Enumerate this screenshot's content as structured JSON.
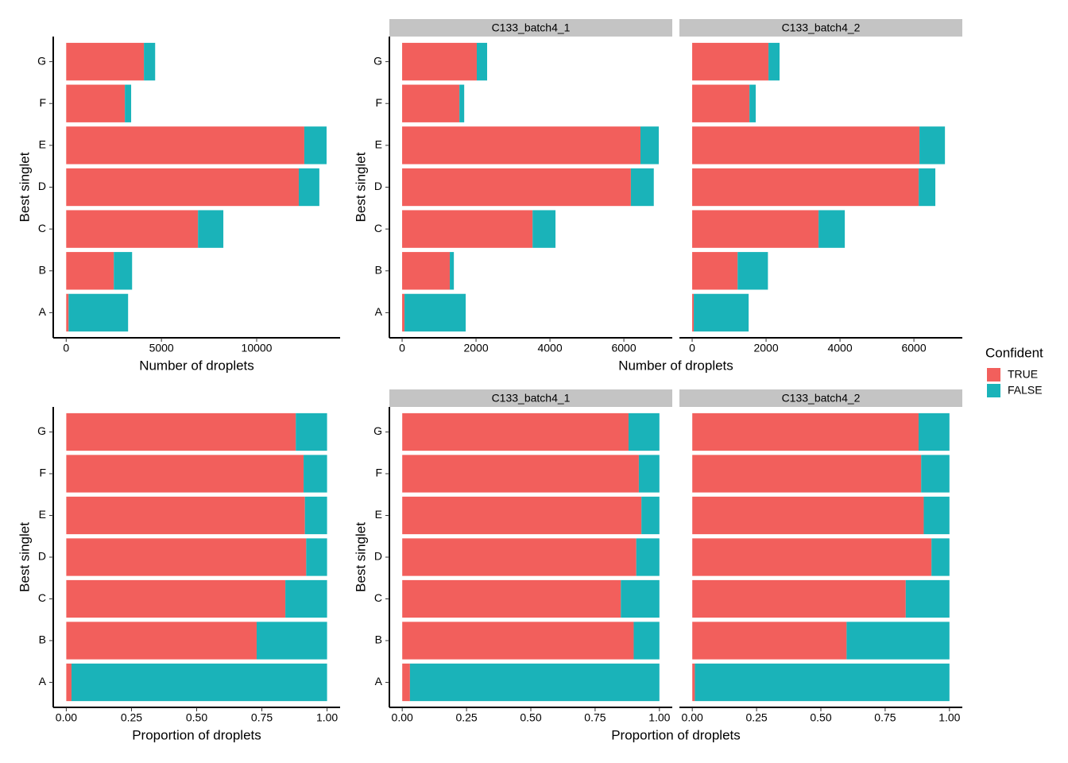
{
  "chart_data": [
    {
      "type": "bar",
      "orientation": "horizontal",
      "stacked": true,
      "xlabel": "Number of droplets",
      "ylabel": "Best singlet",
      "legend_title": "Confident",
      "legend_position": "right",
      "categories": [
        "A",
        "B",
        "C",
        "D",
        "E",
        "F",
        "G"
      ],
      "xlim": [
        -680,
        14380
      ],
      "xticks": [
        0,
        5000,
        10000
      ],
      "panels": [
        {
          "series": [
            {
              "name": "TRUE",
              "color": "#F25F5C",
              "values": [
                125,
                2500,
                6920,
                12210,
                12500,
                3080,
                4080
              ]
            },
            {
              "name": "FALSE",
              "color": "#1AB3B9",
              "values": [
                3125,
                960,
                1330,
                1080,
                1170,
                330,
                590
              ]
            }
          ]
        }
      ]
    },
    {
      "type": "bar",
      "orientation": "horizontal",
      "stacked": true,
      "xlabel": "Number of droplets",
      "ylabel": "Best singlet",
      "categories": [
        "A",
        "B",
        "C",
        "D",
        "E",
        "F",
        "G"
      ],
      "xlim": [
        -345,
        7310
      ],
      "xticks": [
        0,
        2000,
        4000,
        6000
      ],
      "panels": [
        {
          "title": "C133_batch4_1",
          "series": [
            {
              "name": "TRUE",
              "color": "#F25F5C",
              "values": [
                65,
                1290,
                3530,
                6190,
                6450,
                1550,
                2020
              ]
            },
            {
              "name": "FALSE",
              "color": "#1AB3B9",
              "values": [
                1655,
                110,
                620,
                620,
                495,
                130,
                280
              ]
            }
          ]
        },
        {
          "title": "C133_batch4_2",
          "series": [
            {
              "name": "TRUE",
              "color": "#F25F5C",
              "values": [
                43,
                1230,
                3420,
                6130,
                6150,
                1550,
                2065
              ]
            },
            {
              "name": "FALSE",
              "color": "#1AB3B9",
              "values": [
                1485,
                820,
                710,
                450,
                690,
                170,
                300
              ]
            }
          ]
        }
      ]
    },
    {
      "type": "bar",
      "orientation": "horizontal",
      "stacked": true,
      "xlabel": "Proportion of droplets",
      "ylabel": "Best singlet",
      "categories": [
        "A",
        "B",
        "C",
        "D",
        "E",
        "F",
        "G"
      ],
      "xlim": [
        -0.05,
        1.05
      ],
      "xticks": [
        {
          "value": 0,
          "label": "0.00"
        },
        {
          "value": 0.25,
          "label": "0.25"
        },
        {
          "value": 0.5,
          "label": "0.50"
        },
        {
          "value": 0.75,
          "label": "0.75"
        },
        {
          "value": 1,
          "label": "1.00"
        }
      ],
      "panels": [
        {
          "series": [
            {
              "name": "TRUE",
              "color": "#F25F5C",
              "values": [
                0.02,
                0.73,
                0.84,
                0.92,
                0.915,
                0.91,
                0.88
              ]
            },
            {
              "name": "FALSE",
              "color": "#1AB3B9",
              "values": [
                0.98,
                0.27,
                0.16,
                0.08,
                0.085,
                0.09,
                0.12
              ]
            }
          ]
        }
      ]
    },
    {
      "type": "bar",
      "orientation": "horizontal",
      "stacked": true,
      "xlabel": "Proportion of droplets",
      "ylabel": "Best singlet",
      "categories": [
        "A",
        "B",
        "C",
        "D",
        "E",
        "F",
        "G"
      ],
      "xlim": [
        -0.05,
        1.05
      ],
      "xticks": [
        {
          "value": 0,
          "label": "0.00"
        },
        {
          "value": 0.25,
          "label": "0.25"
        },
        {
          "value": 0.5,
          "label": "0.50"
        },
        {
          "value": 0.75,
          "label": "0.75"
        },
        {
          "value": 1,
          "label": "1.00"
        }
      ],
      "panels": [
        {
          "title": "C133_batch4_1",
          "series": [
            {
              "name": "TRUE",
              "color": "#F25F5C",
              "values": [
                0.03,
                0.9,
                0.85,
                0.91,
                0.93,
                0.92,
                0.88
              ]
            },
            {
              "name": "FALSE",
              "color": "#1AB3B9",
              "values": [
                0.97,
                0.1,
                0.15,
                0.09,
                0.07,
                0.08,
                0.12
              ]
            }
          ]
        },
        {
          "title": "C133_batch4_2",
          "series": [
            {
              "name": "TRUE",
              "color": "#F25F5C",
              "values": [
                0.01,
                0.6,
                0.83,
                0.93,
                0.9,
                0.89,
                0.88
              ]
            },
            {
              "name": "FALSE",
              "color": "#1AB3B9",
              "values": [
                0.99,
                0.4,
                0.17,
                0.07,
                0.1,
                0.11,
                0.12
              ]
            }
          ]
        }
      ]
    }
  ]
}
